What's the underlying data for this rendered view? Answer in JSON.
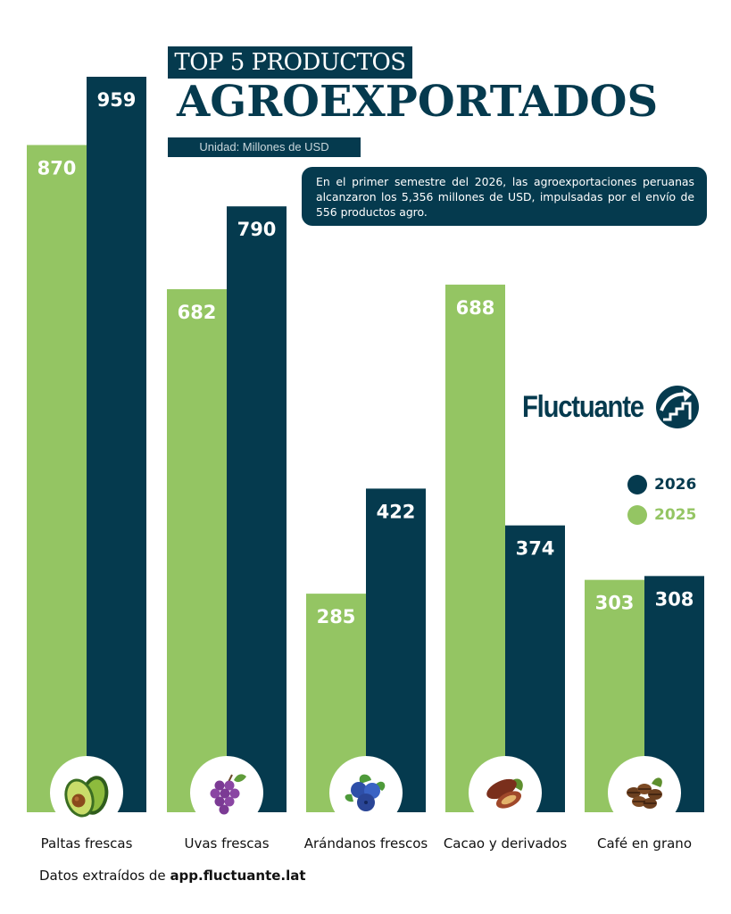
{
  "title": {
    "line1": "TOP 5 PRODUCTOS",
    "line2": "AGROEXPORTADOS",
    "unit": "Unidad: Millones de USD"
  },
  "note": "En el primer semestre del 2026, las agroexportaciones peruanas alcanzaron los 5,356 millones de USD, impulsadas por el envío de 556 productos agro.",
  "brand": {
    "name": "Fluctuante",
    "icon": "trend-arrow-logo"
  },
  "legend": [
    {
      "label": "2026",
      "color": "#053a4e"
    },
    {
      "label": "2025",
      "color": "#94c563"
    }
  ],
  "footer": {
    "prefix": "Datos extraídos de ",
    "link": "app.fluctuante.lat"
  },
  "colors": {
    "dark": "#053a4e",
    "green": "#94c563",
    "background": "#ffffff"
  },
  "chart_data": {
    "type": "bar",
    "categories": [
      "Paltas frescas",
      "Uvas frescas",
      "Arándanos frescos",
      "Cacao y derivados",
      "Café en grano"
    ],
    "category_icons": [
      "avocado-icon",
      "grapes-icon",
      "blueberries-icon",
      "cacao-icon",
      "coffee-beans-icon"
    ],
    "series": [
      {
        "name": "2025",
        "values": [
          870,
          682,
          285,
          688,
          303
        ]
      },
      {
        "name": "2026",
        "values": [
          959,
          790,
          422,
          374,
          308
        ]
      }
    ],
    "title": "TOP 5 PRODUCTOS AGROEXPORTADOS",
    "ylabel": "Unidad: Millones de USD",
    "legend_position": "right",
    "grid": false
  }
}
